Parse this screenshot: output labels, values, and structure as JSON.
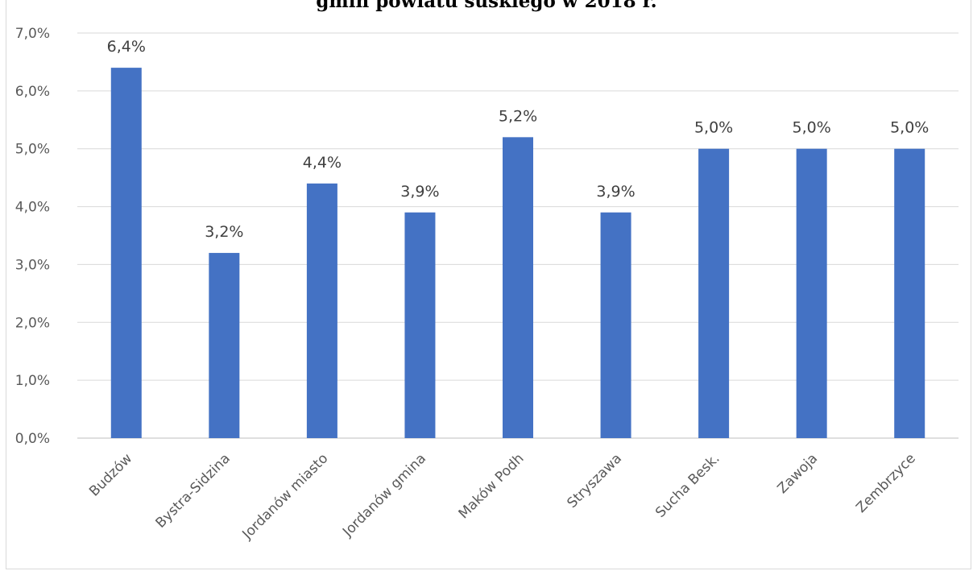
{
  "chart_data": {
    "type": "bar",
    "title": "gmin powiatu suskiego w 2018 r.",
    "categories": [
      "Budzów",
      "Bystra-Sidzina",
      "Jordanów miasto",
      "Jordanów gmina",
      "Maków Podh",
      "Stryszawa",
      "Sucha Besk.",
      "Zawoja",
      "Zembrzyce"
    ],
    "values": [
      6.4,
      3.2,
      4.4,
      3.9,
      5.2,
      3.9,
      5.0,
      5.0,
      5.0
    ],
    "data_labels": [
      "6,4%",
      "3,2%",
      "4,4%",
      "3,9%",
      "5,2%",
      "3,9%",
      "5,0%",
      "5,0%",
      "5,0%"
    ],
    "y_ticks": [
      "0,0%",
      "1,0%",
      "2,0%",
      "3,0%",
      "4,0%",
      "5,0%",
      "6,0%",
      "7,0%"
    ],
    "ylim": [
      0,
      7
    ],
    "grid": true,
    "xlabel": "",
    "ylabel": "",
    "colors": {
      "bar": "#4472C4",
      "grid": "#d9d9d9",
      "axis": "#bfbfbf"
    }
  }
}
